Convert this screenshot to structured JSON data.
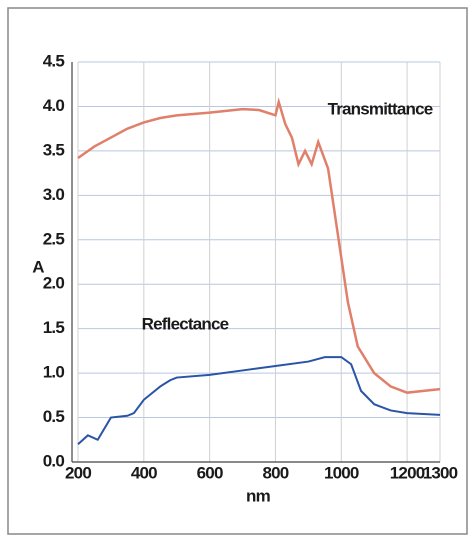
{
  "chart_data": {
    "type": "line",
    "xlabel": "nm",
    "ylabel": "A",
    "xlim": [
      200,
      1300
    ],
    "xticks": [
      200,
      400,
      600,
      800,
      1000,
      1200,
      1300
    ],
    "ylim": [
      0,
      4.5
    ],
    "yticks": [
      {
        "value": 0,
        "label": "0.0"
      },
      0.5,
      {
        "value": 1,
        "label": "1.0"
      },
      1.5,
      {
        "value": 2,
        "label": "2.0"
      },
      2.5,
      {
        "value": 3,
        "label": "3.0"
      },
      3.5,
      {
        "value": 4,
        "label": "4.0"
      },
      4.5
    ],
    "grid": true,
    "series": [
      {
        "name": "Transmittance",
        "color": "#e07f6a",
        "x": [
          200,
          250,
          300,
          350,
          400,
          450,
          500,
          600,
          700,
          750,
          800,
          810,
          830,
          850,
          870,
          890,
          910,
          930,
          950,
          960,
          980,
          1000,
          1020,
          1050,
          1100,
          1150,
          1200,
          1250,
          1300
        ],
        "values": [
          3.42,
          3.55,
          3.65,
          3.75,
          3.82,
          3.87,
          3.9,
          3.93,
          3.97,
          3.96,
          3.9,
          4.05,
          3.8,
          3.65,
          3.35,
          3.5,
          3.35,
          3.6,
          3.4,
          3.3,
          2.8,
          2.3,
          1.8,
          1.3,
          1.0,
          0.85,
          0.78,
          0.8,
          0.82
        ]
      },
      {
        "name": "Reflectance",
        "color": "#2a54a6",
        "x": [
          200,
          230,
          260,
          300,
          350,
          370,
          400,
          450,
          480,
          500,
          600,
          700,
          800,
          900,
          950,
          1000,
          1030,
          1060,
          1100,
          1150,
          1200,
          1300
        ],
        "values": [
          0.2,
          0.3,
          0.25,
          0.5,
          0.52,
          0.55,
          0.7,
          0.85,
          0.92,
          0.95,
          0.98,
          1.03,
          1.08,
          1.13,
          1.18,
          1.18,
          1.1,
          0.8,
          0.65,
          0.58,
          0.55,
          0.53
        ]
      }
    ]
  }
}
